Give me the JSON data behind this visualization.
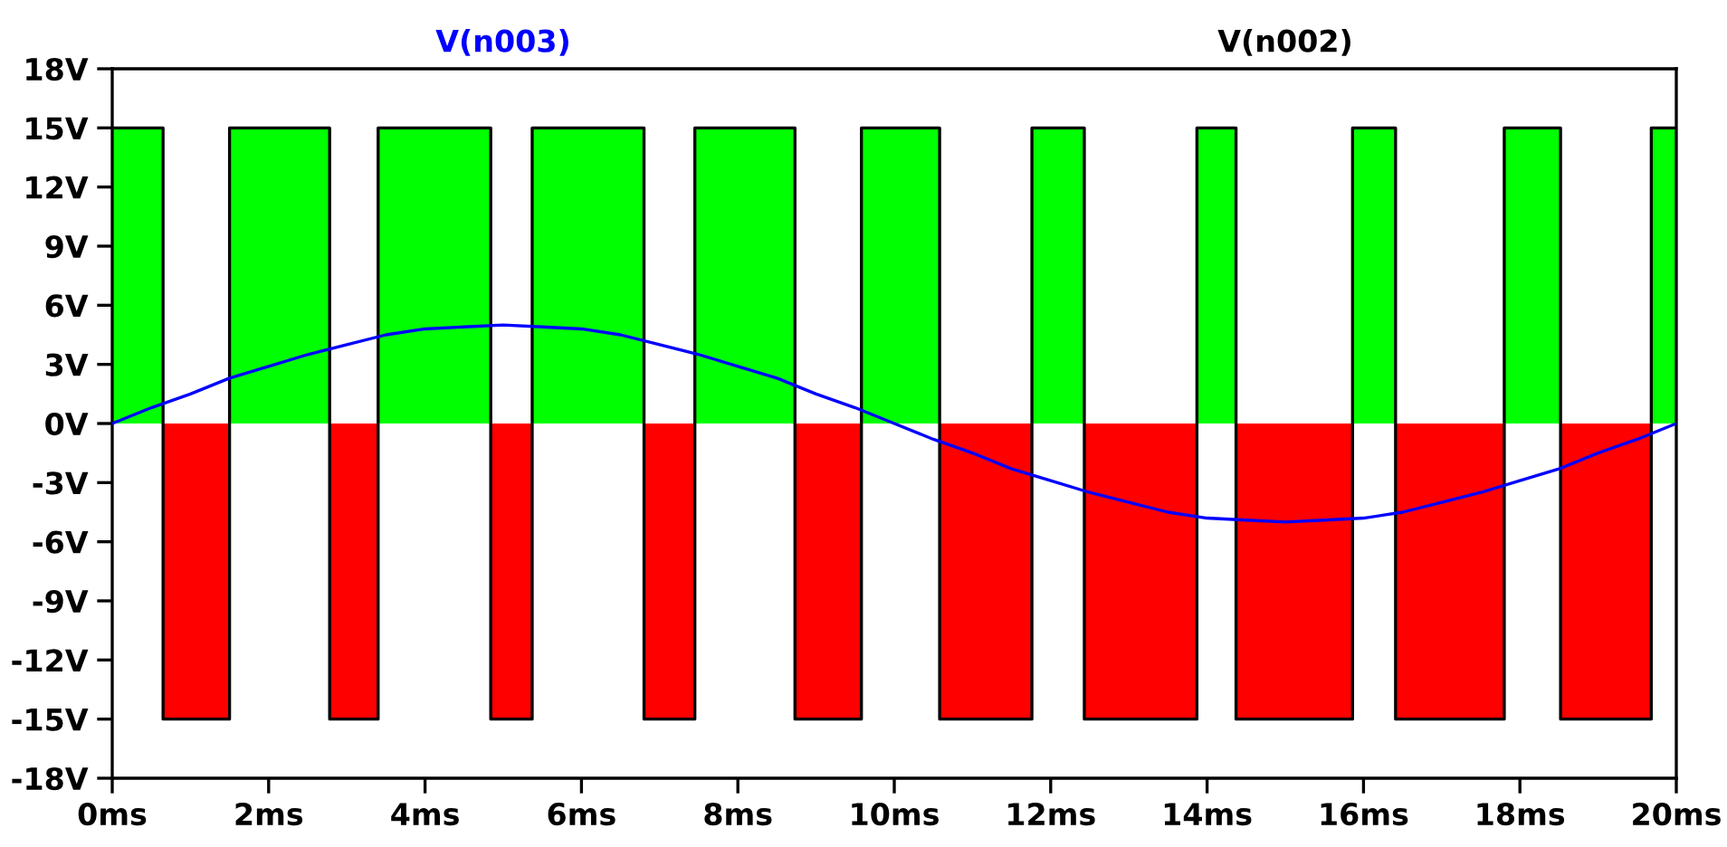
{
  "chart_data": {
    "type": "area",
    "xlim": [
      0,
      20
    ],
    "xticks": [
      {
        "value": 0,
        "label": "0ms"
      },
      {
        "value": 2,
        "label": "2ms"
      },
      {
        "value": 4,
        "label": "4ms"
      },
      {
        "value": 6,
        "label": "6ms"
      },
      {
        "value": 8,
        "label": "8ms"
      },
      {
        "value": 10,
        "label": "10ms"
      },
      {
        "value": 12,
        "label": "12ms"
      },
      {
        "value": 14,
        "label": "14ms"
      },
      {
        "value": 16,
        "label": "16ms"
      },
      {
        "value": 18,
        "label": "18ms"
      },
      {
        "value": 20,
        "label": "20ms"
      }
    ],
    "ylim": [
      -18,
      18
    ],
    "yticks": [
      {
        "value": -18,
        "label": "-18V"
      },
      {
        "value": -15,
        "label": "-15V"
      },
      {
        "value": -12,
        "label": "-12V"
      },
      {
        "value": -9,
        "label": "-9V"
      },
      {
        "value": -6,
        "label": "-6V"
      },
      {
        "value": -3,
        "label": "-3V"
      },
      {
        "value": 0,
        "label": "0V"
      },
      {
        "value": 3,
        "label": "3V"
      },
      {
        "value": 6,
        "label": "6V"
      },
      {
        "value": 9,
        "label": "9V"
      },
      {
        "value": 12,
        "label": "12V"
      },
      {
        "value": 15,
        "label": "15V"
      },
      {
        "value": 18,
        "label": "18V"
      }
    ],
    "legend": "top",
    "series": [
      {
        "name": "V(n003)",
        "type": "line",
        "color": "#0000ff",
        "x": [
          0,
          0.5,
          1,
          1.5,
          2,
          2.5,
          3,
          3.5,
          4,
          4.5,
          5,
          5.5,
          6,
          6.5,
          7,
          7.5,
          8,
          8.5,
          9,
          9.5,
          10,
          10.5,
          11,
          11.5,
          12,
          12.5,
          13,
          13.5,
          14,
          14.5,
          15,
          15.5,
          16,
          16.5,
          17,
          17.5,
          18,
          18.5,
          19,
          19.5,
          20
        ],
        "values": [
          0,
          0.8,
          1.5,
          2.3,
          2.9,
          3.5,
          4.0,
          4.5,
          4.8,
          4.9,
          5.0,
          4.9,
          4.8,
          4.5,
          4.0,
          3.5,
          2.9,
          2.3,
          1.5,
          0.8,
          0,
          -0.8,
          -1.5,
          -2.3,
          -2.9,
          -3.5,
          -4.0,
          -4.5,
          -4.8,
          -4.9,
          -5.0,
          -4.9,
          -4.8,
          -4.5,
          -4.0,
          -3.5,
          -2.9,
          -2.3,
          -1.5,
          -0.8,
          0
        ]
      },
      {
        "name": "V(n002)",
        "type": "step",
        "color": "#000000",
        "x": [
          0,
          0.65,
          1.5,
          2.78,
          3.4,
          4.84,
          5.37,
          6.8,
          7.45,
          8.73,
          9.58,
          10.58,
          11.76,
          12.43,
          13.87,
          14.37,
          15.86,
          16.41,
          17.8,
          18.52,
          19.68,
          20
        ],
        "values": [
          15,
          -15,
          15,
          -15,
          15,
          -15,
          15,
          -15,
          15,
          -15,
          15,
          -15,
          15,
          -15,
          15,
          -15,
          15,
          -15,
          15,
          -15,
          15,
          15
        ]
      },
      {
        "color": "#00ff00",
        "x": [
          0,
          0.65,
          0.65,
          1.5,
          1.5,
          2.78,
          2.78,
          3.4,
          3.4,
          4.84,
          4.84,
          5.37,
          5.37,
          6.8,
          6.8,
          7.45,
          7.45,
          8.73,
          8.73,
          9.58,
          9.58,
          10.58,
          10.58,
          11.76,
          11.76,
          12.43,
          12.43,
          13.87,
          13.87,
          14.37,
          14.37,
          15.86,
          15.86,
          16.41,
          16.41,
          17.8,
          17.8,
          18.52,
          18.52,
          19.68,
          19.68,
          20
        ],
        "values": [
          15,
          15,
          0,
          0,
          15,
          15,
          0,
          0,
          15,
          15,
          0,
          0,
          15,
          15,
          0,
          0,
          15,
          15,
          0,
          0,
          15,
          15,
          0,
          0,
          15,
          15,
          0,
          0,
          15,
          15,
          0,
          0,
          15,
          15,
          0,
          0,
          15,
          15,
          0,
          0,
          15,
          15
        ]
      },
      {
        "color": "#ff0000",
        "x": [
          0,
          0.65,
          0.65,
          1.5,
          1.5,
          2.78,
          2.78,
          3.4,
          3.4,
          4.84,
          4.84,
          5.37,
          5.37,
          6.8,
          6.8,
          7.45,
          7.45,
          8.73,
          8.73,
          9.58,
          9.58,
          10.58,
          10.58,
          11.76,
          11.76,
          12.43,
          12.43,
          13.87,
          13.87,
          14.37,
          14.37,
          15.86,
          15.86,
          16.41,
          16.41,
          17.8,
          17.8,
          18.52,
          18.52,
          19.68,
          19.68,
          20
        ],
        "values": [
          0,
          0,
          -15,
          -15,
          0,
          0,
          -15,
          -15,
          0,
          0,
          -15,
          -15,
          0,
          0,
          -15,
          -15,
          0,
          0,
          -15,
          -15,
          0,
          0,
          -15,
          -15,
          0,
          0,
          -15,
          -15,
          0,
          0,
          -15,
          -15,
          0,
          0,
          -15,
          -15,
          0,
          0,
          -15,
          -15,
          0,
          0
        ]
      }
    ]
  }
}
